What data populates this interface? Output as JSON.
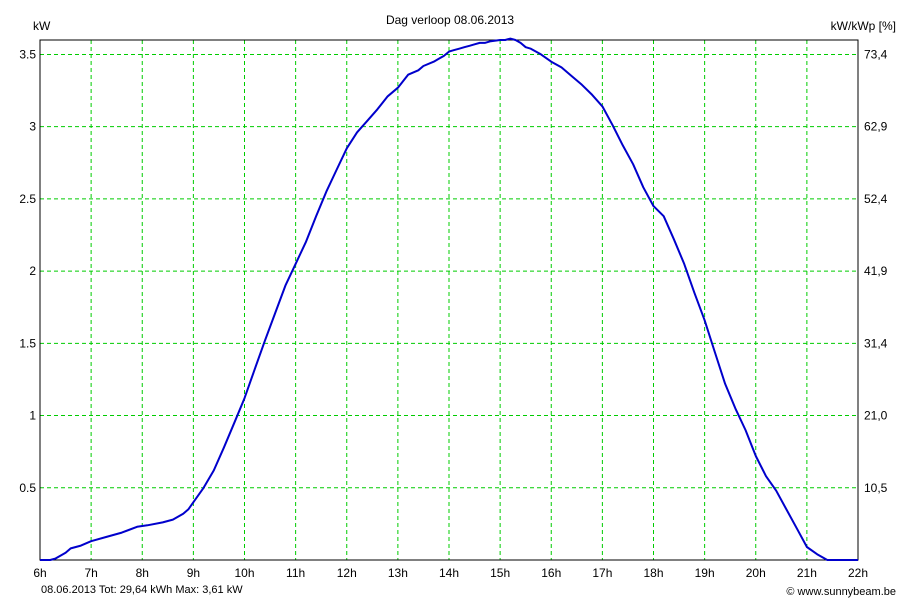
{
  "chart_data": {
    "type": "line",
    "title": "Dag  verloop 08.06.2013",
    "ylabel_left": "kW",
    "ylabel_right": "kW/kWp [%]",
    "x_ticks": [
      "6h",
      "7h",
      "8h",
      "9h",
      "10h",
      "11h",
      "12h",
      "13h",
      "14h",
      "15h",
      "16h",
      "17h",
      "18h",
      "19h",
      "20h",
      "21h",
      "22h"
    ],
    "xlim": [
      6,
      22
    ],
    "ylim": [
      0,
      3.6
    ],
    "y_ticks_left": [
      {
        "value": 0.5,
        "label": "0.5"
      },
      {
        "value": 1.0,
        "label": "1"
      },
      {
        "value": 1.5,
        "label": "1.5"
      },
      {
        "value": 2.0,
        "label": "2"
      },
      {
        "value": 2.5,
        "label": "2.5"
      },
      {
        "value": 3.0,
        "label": "3"
      },
      {
        "value": 3.5,
        "label": "3.5"
      }
    ],
    "y_ticks_right": [
      {
        "value": 0.5,
        "label": "10,5"
      },
      {
        "value": 1.0,
        "label": "21,0"
      },
      {
        "value": 1.5,
        "label": "31,4"
      },
      {
        "value": 2.0,
        "label": "41,9"
      },
      {
        "value": 2.5,
        "label": "52,4"
      },
      {
        "value": 3.0,
        "label": "62,9"
      },
      {
        "value": 3.5,
        "label": "73,4"
      }
    ],
    "grid": true,
    "line_color": "#0000cc",
    "grid_color": "#00cc00",
    "series": [
      {
        "x": [
          5.8,
          6.2,
          6.3,
          6.5,
          6.6,
          6.8,
          7.0,
          7.3,
          7.6,
          7.9,
          8.1,
          8.4,
          8.6,
          8.8,
          8.9,
          9.0,
          9.2,
          9.4,
          9.6,
          9.8,
          10.0,
          10.2,
          10.4,
          10.6,
          10.8,
          11.0,
          11.2,
          11.4,
          11.6,
          11.8,
          12.0,
          12.2,
          12.4,
          12.6,
          12.8,
          13.0,
          13.2,
          13.4,
          13.5,
          13.7,
          13.8,
          13.9,
          14.0,
          14.1,
          14.2,
          14.3,
          14.4,
          14.5,
          14.6,
          14.7,
          14.8,
          15.0,
          15.1,
          15.2,
          15.3,
          15.4,
          15.5,
          15.6,
          15.8,
          16.0,
          16.2,
          16.4,
          16.6,
          16.8,
          17.0,
          17.2,
          17.4,
          17.6,
          17.8,
          18.0,
          18.2,
          18.4,
          18.6,
          18.8,
          19.0,
          19.2,
          19.4,
          19.6,
          19.8,
          20.0,
          20.2,
          20.4,
          20.6,
          20.8,
          21.0,
          21.2,
          21.4,
          21.6,
          21.8,
          22.0
        ],
        "y": [
          0.0,
          0.0,
          0.01,
          0.05,
          0.08,
          0.1,
          0.13,
          0.16,
          0.19,
          0.23,
          0.24,
          0.26,
          0.28,
          0.32,
          0.35,
          0.4,
          0.5,
          0.62,
          0.78,
          0.95,
          1.12,
          1.32,
          1.52,
          1.71,
          1.9,
          2.05,
          2.2,
          2.38,
          2.55,
          2.7,
          2.85,
          2.96,
          3.04,
          3.12,
          3.21,
          3.27,
          3.36,
          3.39,
          3.42,
          3.45,
          3.47,
          3.49,
          3.52,
          3.53,
          3.54,
          3.55,
          3.56,
          3.57,
          3.58,
          3.58,
          3.59,
          3.6,
          3.6,
          3.61,
          3.6,
          3.58,
          3.55,
          3.54,
          3.5,
          3.45,
          3.41,
          3.35,
          3.29,
          3.22,
          3.14,
          3.01,
          2.87,
          2.74,
          2.58,
          2.45,
          2.38,
          2.22,
          2.05,
          1.85,
          1.66,
          1.44,
          1.22,
          1.05,
          0.9,
          0.72,
          0.58,
          0.48,
          0.35,
          0.22,
          0.09,
          0.04,
          0.0,
          0.0,
          0.0,
          0.0
        ]
      }
    ]
  },
  "footer": {
    "info": "08.06.2013 Tot: 29,64 kWh Max: 3,61 kW",
    "credit": "© www.sunnybeam.be",
    "info_color": "#0000ff"
  }
}
